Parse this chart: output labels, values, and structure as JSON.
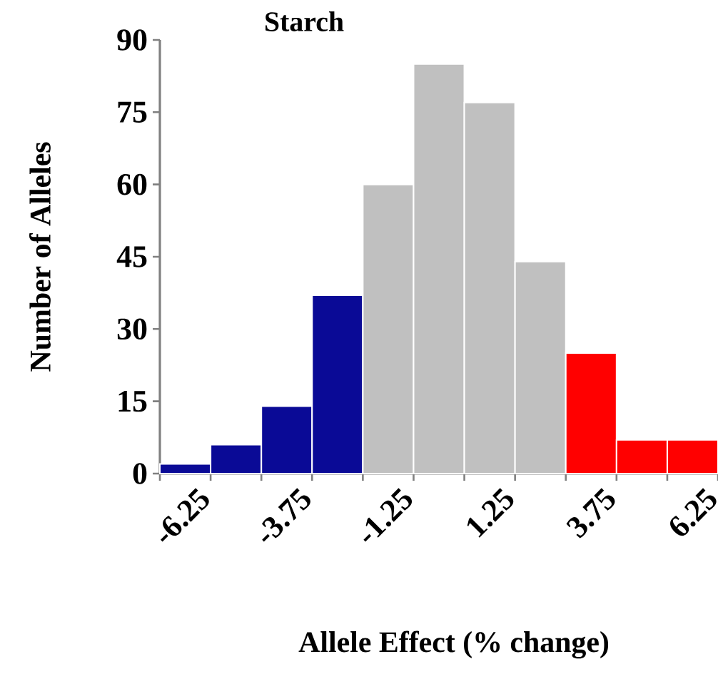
{
  "chart_data": {
    "type": "bar",
    "title": "Starch",
    "xlabel": "Allele Effect (% change)",
    "ylabel": "Number of Alleles",
    "categories": [
      "-6.25",
      null,
      "-3.75",
      null,
      "-1.25",
      null,
      "1.25",
      null,
      "3.75",
      null,
      "6.25"
    ],
    "values": [
      2,
      6,
      14,
      37,
      60,
      85,
      77,
      44,
      25,
      7,
      7
    ],
    "colors": [
      "#0a0a96",
      "#0a0a96",
      "#0a0a96",
      "#0a0a96",
      "#c0c0c0",
      "#c0c0c0",
      "#c0c0c0",
      "#c0c0c0",
      "#ff0000",
      "#ff0000",
      "#ff0000"
    ],
    "ylim": [
      0,
      90
    ],
    "yticks": [
      0,
      15,
      30,
      45,
      60,
      75,
      90
    ],
    "grid": false
  }
}
